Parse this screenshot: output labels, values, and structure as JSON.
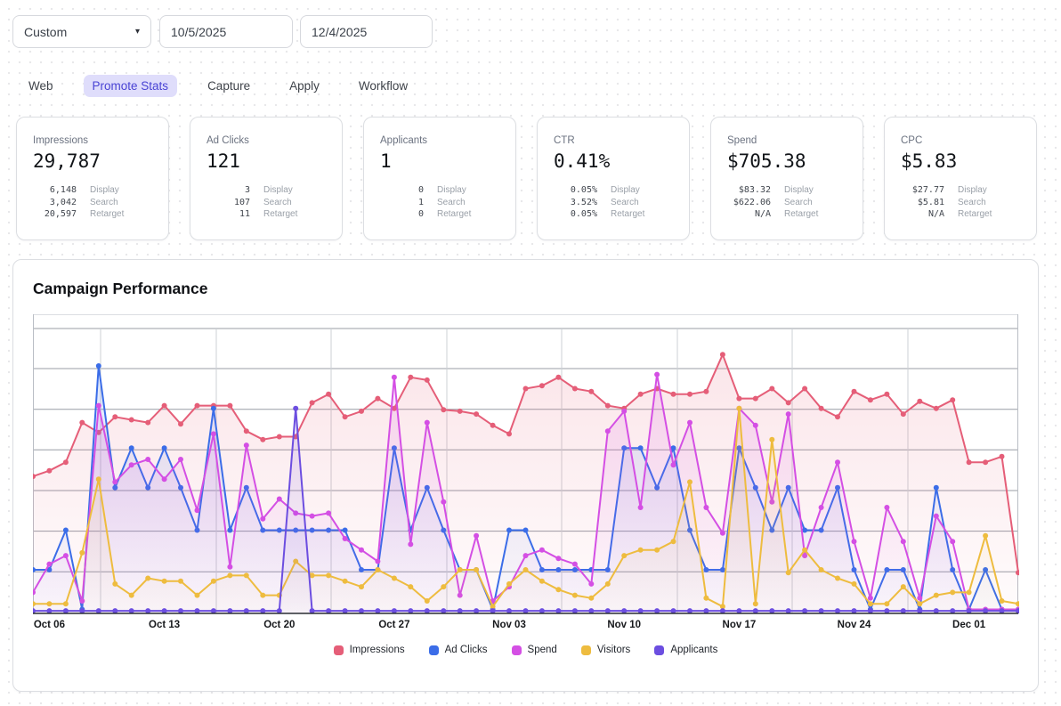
{
  "controls": {
    "range_select": {
      "value": "Custom",
      "chevron_icon": "▾"
    },
    "start_date": "10/5/2025",
    "end_date": "12/4/2025"
  },
  "tabs": {
    "items": [
      "Web",
      "Promote Stats",
      "Capture",
      "Apply",
      "Workflow"
    ],
    "active": "Promote Stats",
    "active_bg": "#dfddfb",
    "active_color": "#4943d4"
  },
  "stats": {
    "cards": [
      {
        "label": "Impressions",
        "value": "29,787",
        "rows": [
          {
            "value": "6,148",
            "label": "Display"
          },
          {
            "value": "3,042",
            "label": "Search"
          },
          {
            "value": "20,597",
            "label": "Retarget"
          }
        ]
      },
      {
        "label": "Ad Clicks",
        "value": "121",
        "rows": [
          {
            "value": "3",
            "label": "Display"
          },
          {
            "value": "107",
            "label": "Search"
          },
          {
            "value": "11",
            "label": "Retarget"
          }
        ]
      },
      {
        "label": "Applicants",
        "value": "1",
        "rows": [
          {
            "value": "0",
            "label": "Display"
          },
          {
            "value": "1",
            "label": "Search"
          },
          {
            "value": "0",
            "label": "Retarget"
          }
        ]
      },
      {
        "label": "CTR",
        "value": "0.41%",
        "rows": [
          {
            "value": "0.05%",
            "label": "Display"
          },
          {
            "value": "3.52%",
            "label": "Search"
          },
          {
            "value": "0.05%",
            "label": "Retarget"
          }
        ]
      },
      {
        "label": "Spend",
        "value": "$705.38",
        "rows": [
          {
            "value": "$83.32",
            "label": "Display"
          },
          {
            "value": "$622.06",
            "label": "Search"
          },
          {
            "value": "N/A",
            "label": "Retarget"
          }
        ]
      },
      {
        "label": "CPC",
        "value": "$5.83",
        "rows": [
          {
            "value": "$27.77",
            "label": "Display"
          },
          {
            "value": "$5.81",
            "label": "Search"
          },
          {
            "value": "N/A",
            "label": "Retarget"
          }
        ]
      }
    ]
  },
  "chart": {
    "title": "Campaign Performance"
  },
  "chart_data": {
    "type": "line",
    "title": "Campaign Performance",
    "x_start_date": "2025-10-05",
    "x_end_date": "2025-12-04",
    "x_days": 61,
    "x_tick_labels": [
      "Oct 06",
      "Oct 13",
      "Oct 20",
      "Oct 27",
      "Nov 03",
      "Nov 10",
      "Nov 17",
      "Nov 24",
      "Dec 01"
    ],
    "x_tick_day_indices": [
      1,
      8,
      15,
      22,
      29,
      36,
      43,
      50,
      57
    ],
    "y_axis": "no visible y labels; values are relative height 0-100 (each series normalized by the chart)",
    "grid": {
      "h_lines": 7,
      "v_lines_midweek": true
    },
    "legend_position": "bottom-center",
    "series": [
      {
        "name": "Impressions",
        "color": "#e55e78",
        "values": [
          48,
          50,
          53,
          67,
          63.5,
          69,
          68,
          67,
          73,
          66.5,
          73,
          73,
          73,
          64,
          61,
          62,
          62,
          74,
          77,
          69,
          71,
          75.5,
          72,
          83,
          82,
          71.5,
          71,
          70,
          66,
          63,
          79,
          80,
          83,
          79,
          78,
          73,
          72,
          77,
          79,
          77,
          77,
          78,
          91,
          75.5,
          75.5,
          79,
          74,
          79,
          72,
          69,
          78,
          75,
          77,
          70,
          74.5,
          72,
          75,
          53,
          53,
          55,
          14
        ]
      },
      {
        "name": "Ad Clicks",
        "color": "#3b6de8",
        "values": [
          15,
          15,
          29,
          1,
          87,
          44,
          58,
          44,
          58,
          44,
          29,
          72,
          29,
          44,
          29,
          29,
          29,
          29,
          29,
          29,
          15,
          15,
          58,
          29,
          44,
          29,
          15,
          15,
          1,
          29,
          29,
          15,
          15,
          15,
          15,
          15,
          58,
          58,
          44,
          58,
          29,
          15,
          15,
          58,
          44,
          29,
          44,
          29,
          29,
          44,
          15,
          1,
          15,
          15,
          1,
          44,
          15,
          1,
          15,
          1,
          1
        ]
      },
      {
        "name": "Spend",
        "color": "#d44fe4",
        "values": [
          7,
          17,
          20,
          4,
          73,
          46,
          52,
          54,
          47,
          54,
          36,
          63,
          16,
          59,
          33,
          40,
          35,
          34,
          35,
          26,
          22,
          18,
          83,
          24,
          67,
          39,
          6,
          27,
          4,
          9,
          20,
          22,
          19,
          17,
          10,
          64,
          71,
          37,
          84,
          52,
          67,
          37,
          28,
          72,
          66,
          39,
          70,
          20,
          37,
          53,
          25,
          5,
          37,
          25,
          5,
          34,
          25,
          1,
          1,
          1,
          1
        ]
      },
      {
        "name": "Visitors",
        "color": "#eebc3f",
        "values": [
          3,
          3,
          3,
          21,
          47,
          10,
          6,
          12,
          11,
          11,
          6,
          11,
          13,
          13,
          6,
          6,
          18,
          13,
          13,
          11,
          9,
          15,
          12,
          9,
          4,
          9,
          15,
          15,
          2,
          10,
          15,
          11,
          8,
          6,
          5,
          10,
          20,
          22,
          22,
          25,
          46,
          5,
          2,
          72,
          3,
          61,
          14,
          22,
          15,
          12,
          10,
          3,
          3,
          9,
          3,
          6,
          7,
          7,
          27,
          4,
          3
        ]
      },
      {
        "name": "Applicants",
        "color": "#6c4ee0",
        "values": [
          0.5,
          0.5,
          0.5,
          0.5,
          0.5,
          0.5,
          0.5,
          0.5,
          0.5,
          0.5,
          0.5,
          0.5,
          0.5,
          0.5,
          0.5,
          0.5,
          72,
          0.5,
          0.5,
          0.5,
          0.5,
          0.5,
          0.5,
          0.5,
          0.5,
          0.5,
          0.5,
          0.5,
          0.5,
          0.5,
          0.5,
          0.5,
          0.5,
          0.5,
          0.5,
          0.5,
          0.5,
          0.5,
          0.5,
          0.5,
          0.5,
          0.5,
          0.5,
          0.5,
          0.5,
          0.5,
          0.5,
          0.5,
          0.5,
          0.5,
          0.5,
          0.5,
          0.5,
          0.5,
          0.5,
          0.5,
          0.5,
          0.5,
          0.5,
          0.5,
          0.5
        ]
      }
    ]
  },
  "colors": {
    "grid_h": "#989da6",
    "grid_v": "#cdd0d5",
    "plot_border": "#b9bdc4",
    "axis": "#2a2e33",
    "tick_label": "#17191c"
  }
}
